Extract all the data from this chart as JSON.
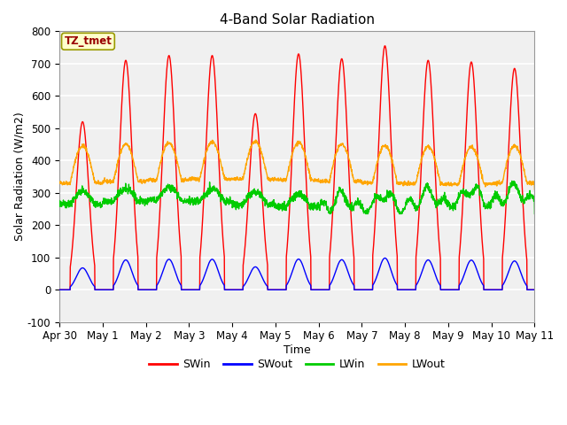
{
  "title": "4-Band Solar Radiation",
  "xlabel": "Time",
  "ylabel": "Solar Radiation (W/m2)",
  "ylim": [
    -100,
    800
  ],
  "facecolor": "#ffffff",
  "plot_bg_color": "#f0f0f0",
  "grid_color": "#ffffff",
  "legend_label": "TZ_tmet",
  "series": [
    "SWin",
    "SWout",
    "LWin",
    "LWout"
  ],
  "colors": [
    "red",
    "blue",
    "#00cc00",
    "orange"
  ],
  "x_tick_labels": [
    "Apr 30",
    "May 1",
    "May 2",
    "May 3",
    "May 4",
    "May 5",
    "May 6",
    "May 7",
    "May 8",
    "May 9",
    "May 10",
    "May 11"
  ],
  "x_tick_positions": [
    0,
    1,
    2,
    3,
    4,
    5,
    6,
    7,
    8,
    9,
    10,
    11
  ],
  "yticks": [
    -100,
    0,
    100,
    200,
    300,
    400,
    500,
    600,
    700,
    800
  ],
  "peak_heights_SWin": [
    520,
    710,
    725,
    725,
    545,
    730,
    715,
    755,
    710,
    705,
    685
  ],
  "seed": 42
}
